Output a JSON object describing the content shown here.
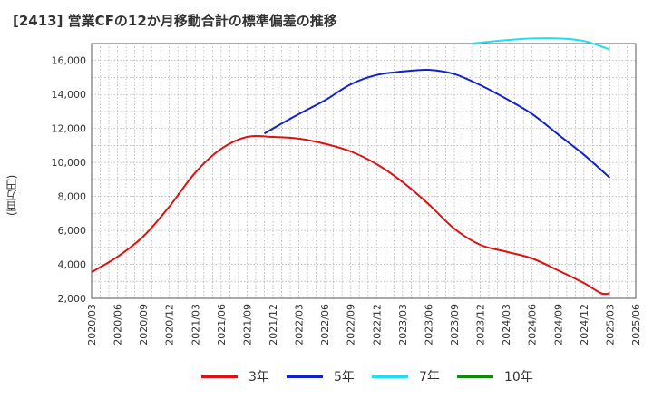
{
  "chart_data": {
    "type": "line",
    "title": "[2413]  営業CFの12か月移動合計の標準偏差の推移",
    "ylabel": "(百万円)",
    "xlabel": "",
    "ylim": [
      2000,
      17000
    ],
    "yticks": [
      2000,
      4000,
      6000,
      8000,
      10000,
      12000,
      14000,
      16000
    ],
    "ytick_labels": [
      "2,000",
      "4,000",
      "6,000",
      "8,000",
      "10,000",
      "12,000",
      "14,000",
      "16,000"
    ],
    "xtick_labels": [
      "2020/03",
      "2020/06",
      "2020/09",
      "2020/12",
      "2021/03",
      "2021/06",
      "2021/09",
      "2021/12",
      "2022/03",
      "2022/06",
      "2022/09",
      "2022/12",
      "2023/03",
      "2023/06",
      "2023/09",
      "2023/12",
      "2024/03",
      "2024/06",
      "2024/09",
      "2024/12",
      "2025/03",
      "2025/06"
    ],
    "grid": true,
    "legend_position": "bottom",
    "series": [
      {
        "name": "3年",
        "color": "#dd1111",
        "points": [
          [
            "2020/03",
            3550
          ],
          [
            "2020/06",
            4450
          ],
          [
            "2020/09",
            5650
          ],
          [
            "2020/12",
            7400
          ],
          [
            "2021/03",
            9400
          ],
          [
            "2021/06",
            10800
          ],
          [
            "2021/09",
            11500
          ],
          [
            "2021/12",
            11500
          ],
          [
            "2022/03",
            11400
          ],
          [
            "2022/06",
            11100
          ],
          [
            "2022/09",
            10650
          ],
          [
            "2022/12",
            9900
          ],
          [
            "2023/03",
            8850
          ],
          [
            "2023/06",
            7550
          ],
          [
            "2023/09",
            6100
          ],
          [
            "2023/12",
            5150
          ],
          [
            "2024/03",
            4750
          ],
          [
            "2024/06",
            4350
          ],
          [
            "2024/09",
            3650
          ],
          [
            "2024/12",
            2900
          ],
          [
            "2025/02",
            2300
          ],
          [
            "2025/03",
            2300
          ]
        ]
      },
      {
        "name": "5年",
        "color": "#1122cc",
        "points": [
          [
            "2021/11",
            11700
          ],
          [
            "2021/12",
            12000
          ],
          [
            "2022/03",
            12850
          ],
          [
            "2022/06",
            13650
          ],
          [
            "2022/09",
            14600
          ],
          [
            "2022/12",
            15150
          ],
          [
            "2023/03",
            15350
          ],
          [
            "2023/06",
            15450
          ],
          [
            "2023/09",
            15200
          ],
          [
            "2023/12",
            14550
          ],
          [
            "2024/03",
            13750
          ],
          [
            "2024/06",
            12850
          ],
          [
            "2024/09",
            11650
          ],
          [
            "2024/12",
            10450
          ],
          [
            "2025/03",
            9100
          ]
        ]
      },
      {
        "name": "7年",
        "color": "#22ddee",
        "points": [
          [
            "2023/11",
            17000
          ],
          [
            "2023/12",
            17050
          ],
          [
            "2024/03",
            17200
          ],
          [
            "2024/06",
            17300
          ],
          [
            "2024/09",
            17300
          ],
          [
            "2024/12",
            17150
          ],
          [
            "2025/03",
            16650
          ]
        ]
      },
      {
        "name": "10年",
        "color": "#118811",
        "points": []
      }
    ]
  }
}
